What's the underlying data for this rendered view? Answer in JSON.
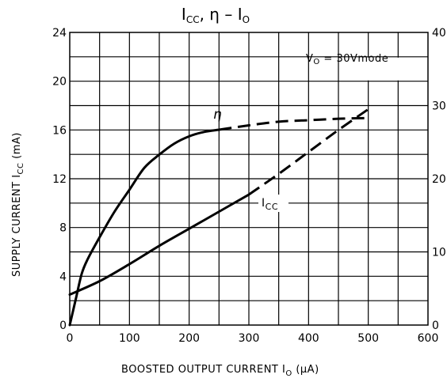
{
  "chart_data": {
    "type": "line",
    "title": {
      "main": "I",
      "main_sub": "CC",
      "sep": ", η  –  I",
      "end_sub": "O"
    },
    "xlabel": {
      "text": "BOOSTED  OUTPUT  CURRENT   I",
      "sub": "O",
      "unit": "   (μA)"
    },
    "ylabel_left": {
      "text": "SUPPLY  CURRENT   I",
      "sub": "CC",
      "unit": "   (mA)"
    },
    "xlim": [
      0,
      600
    ],
    "ylim_left": [
      0,
      24
    ],
    "ylim_right": [
      0,
      40
    ],
    "x_ticks": [
      "0",
      "100",
      "200",
      "300",
      "400",
      "500",
      "600"
    ],
    "y_left_ticks": [
      "0",
      "4",
      "8",
      "12",
      "16",
      "20",
      "24"
    ],
    "y_right_ticks": [
      "0",
      "10",
      "20",
      "30",
      "40"
    ],
    "grid": true,
    "annotation": {
      "text": "V",
      "sub": "O",
      "rest": " = 30Vmode"
    },
    "series": [
      {
        "name": "η",
        "axis": "right",
        "points": [
          [
            0,
            0
          ],
          [
            10,
            3.5
          ],
          [
            20,
            7
          ],
          [
            30,
            9
          ],
          [
            50,
            12
          ],
          [
            75,
            15.5
          ],
          [
            100,
            18.5
          ],
          [
            125,
            21.5
          ],
          [
            150,
            23.3
          ],
          [
            175,
            24.8
          ],
          [
            200,
            25.8
          ],
          [
            225,
            26.4
          ],
          [
            250,
            26.7
          ]
        ],
        "dashed_points": [
          [
            250,
            26.7
          ],
          [
            300,
            27.3
          ],
          [
            350,
            27.8
          ],
          [
            400,
            28
          ],
          [
            450,
            28.2
          ],
          [
            500,
            28.3
          ]
        ]
      },
      {
        "name": "I",
        "name_sub": "CC",
        "axis": "left",
        "points": [
          [
            0,
            2.5
          ],
          [
            50,
            3.6
          ],
          [
            100,
            5
          ],
          [
            150,
            6.5
          ],
          [
            200,
            7.9
          ],
          [
            250,
            9.3
          ],
          [
            300,
            10.7
          ]
        ],
        "dashed_points": [
          [
            300,
            10.7
          ],
          [
            350,
            12.4
          ],
          [
            400,
            14.2
          ],
          [
            450,
            16
          ],
          [
            500,
            17.7
          ]
        ]
      }
    ]
  }
}
